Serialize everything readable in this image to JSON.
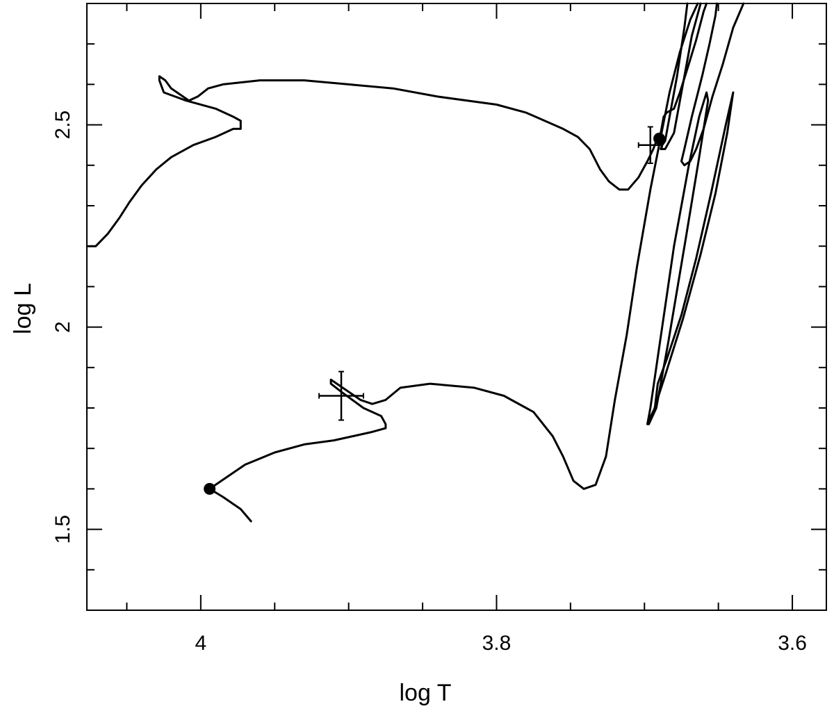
{
  "chart_data": {
    "type": "line",
    "title": "",
    "xlabel": "log T",
    "ylabel": "log L",
    "xlim": [
      4.077,
      3.577
    ],
    "ylim": [
      1.3,
      2.8
    ],
    "x_inverted": true,
    "grid": false,
    "x_ticks_major": [
      4,
      3.8,
      3.6
    ],
    "x_tick_labels": [
      "4",
      "3.8",
      "3.6"
    ],
    "x_ticks_minor": [
      4.05,
      3.95,
      3.9,
      3.85,
      3.75,
      3.7,
      3.65,
      3.55
    ],
    "y_ticks_major": [
      1.5,
      2,
      2.5
    ],
    "y_tick_labels": [
      "1.5",
      "2",
      "2.5"
    ],
    "y_ticks_minor": [
      1.4,
      1.6,
      1.7,
      1.8,
      1.9,
      2.1,
      2.2,
      2.3,
      2.4,
      2.6,
      2.7
    ],
    "series": [
      {
        "points": [
          [
            4.076,
            2.2
          ],
          [
            4.071,
            2.2
          ],
          [
            4.063,
            2.23
          ],
          [
            4.055,
            2.27
          ],
          [
            4.048,
            2.31
          ],
          [
            4.04,
            2.35
          ],
          [
            4.03,
            2.39
          ],
          [
            4.02,
            2.42
          ],
          [
            4.005,
            2.45
          ],
          [
            3.99,
            2.47
          ],
          [
            3.978,
            2.49
          ],
          [
            3.973,
            2.49
          ],
          [
            3.973,
            2.51
          ],
          [
            3.978,
            2.52
          ],
          [
            3.99,
            2.54
          ],
          [
            4.01,
            2.56
          ],
          [
            4.025,
            2.58
          ],
          [
            4.028,
            2.61
          ],
          [
            4.028,
            2.62
          ],
          [
            4.024,
            2.61
          ],
          [
            4.02,
            2.59
          ],
          [
            4.012,
            2.57
          ],
          [
            4.008,
            2.56
          ],
          [
            4.002,
            2.57
          ],
          [
            3.995,
            2.59
          ],
          [
            3.985,
            2.6
          ],
          [
            3.96,
            2.61
          ],
          [
            3.93,
            2.61
          ],
          [
            3.9,
            2.6
          ],
          [
            3.87,
            2.59
          ],
          [
            3.84,
            2.57
          ],
          [
            3.8,
            2.55
          ],
          [
            3.78,
            2.53
          ],
          [
            3.755,
            2.49
          ],
          [
            3.745,
            2.47
          ],
          [
            3.737,
            2.44
          ],
          [
            3.73,
            2.39
          ],
          [
            3.724,
            2.36
          ],
          [
            3.717,
            2.34
          ],
          [
            3.711,
            2.34
          ],
          [
            3.704,
            2.37
          ],
          [
            3.698,
            2.41
          ],
          [
            3.694,
            2.44
          ],
          [
            3.692,
            2.46
          ],
          [
            3.69,
            2.47
          ],
          [
            3.689,
            2.48
          ],
          [
            3.688,
            2.5
          ],
          [
            3.687,
            2.52
          ],
          [
            3.685,
            2.53
          ],
          [
            3.68,
            2.54
          ],
          [
            3.676,
            2.58
          ],
          [
            3.67,
            2.65
          ],
          [
            3.665,
            2.71
          ],
          [
            3.66,
            2.78
          ],
          [
            3.658,
            2.8
          ]
        ]
      },
      {
        "points": [
          [
            3.671,
            2.8
          ],
          [
            3.673,
            2.74
          ],
          [
            3.678,
            2.62
          ],
          [
            3.683,
            2.52
          ],
          [
            3.686,
            2.46
          ],
          [
            3.688,
            2.45
          ],
          [
            3.689,
            2.44
          ],
          [
            3.686,
            2.44
          ],
          [
            3.68,
            2.48
          ],
          [
            3.674,
            2.6
          ],
          [
            3.668,
            2.72
          ],
          [
            3.662,
            2.8
          ]
        ]
      },
      {
        "points": [
          [
            3.633,
            2.8
          ],
          [
            3.64,
            2.74
          ],
          [
            3.647,
            2.65
          ],
          [
            3.654,
            2.57
          ],
          [
            3.66,
            2.49
          ],
          [
            3.665,
            2.44
          ],
          [
            3.669,
            2.41
          ],
          [
            3.673,
            2.4
          ],
          [
            3.675,
            2.41
          ],
          [
            3.673,
            2.44
          ],
          [
            3.668,
            2.52
          ],
          [
            3.661,
            2.62
          ],
          [
            3.656,
            2.7
          ],
          [
            3.652,
            2.77
          ],
          [
            3.651,
            2.8
          ]
        ]
      },
      {
        "points": [
          [
            3.966,
            1.52
          ],
          [
            3.973,
            1.55
          ],
          [
            3.985,
            1.58
          ],
          [
            3.994,
            1.6
          ],
          [
            3.986,
            1.62
          ],
          [
            3.97,
            1.66
          ],
          [
            3.95,
            1.69
          ],
          [
            3.93,
            1.71
          ],
          [
            3.91,
            1.72
          ],
          [
            3.885,
            1.74
          ],
          [
            3.875,
            1.75
          ],
          [
            3.875,
            1.76
          ],
          [
            3.878,
            1.78
          ],
          [
            3.89,
            1.8
          ],
          [
            3.905,
            1.84
          ],
          [
            3.912,
            1.86
          ],
          [
            3.912,
            1.87
          ],
          [
            3.9,
            1.84
          ],
          [
            3.892,
            1.82
          ],
          [
            3.884,
            1.81
          ],
          [
            3.875,
            1.82
          ],
          [
            3.865,
            1.85
          ],
          [
            3.845,
            1.86
          ],
          [
            3.815,
            1.85
          ],
          [
            3.795,
            1.83
          ],
          [
            3.775,
            1.79
          ],
          [
            3.762,
            1.73
          ],
          [
            3.755,
            1.68
          ],
          [
            3.748,
            1.62
          ],
          [
            3.741,
            1.6
          ],
          [
            3.733,
            1.61
          ],
          [
            3.726,
            1.68
          ],
          [
            3.72,
            1.82
          ],
          [
            3.712,
            1.98
          ],
          [
            3.705,
            2.15
          ],
          [
            3.696,
            2.34
          ],
          [
            3.689,
            2.47
          ],
          [
            3.683,
            2.58
          ],
          [
            3.676,
            2.68
          ],
          [
            3.669,
            2.76
          ],
          [
            3.664,
            2.8
          ]
        ]
      },
      {
        "points": [
          [
            3.698,
            1.76
          ],
          [
            3.696,
            1.8
          ],
          [
            3.69,
            1.95
          ],
          [
            3.68,
            2.2
          ],
          [
            3.67,
            2.4
          ],
          [
            3.663,
            2.52
          ],
          [
            3.658,
            2.58
          ],
          [
            3.657,
            2.56
          ],
          [
            3.663,
            2.42
          ],
          [
            3.672,
            2.22
          ],
          [
            3.684,
            1.96
          ],
          [
            3.692,
            1.8
          ],
          [
            3.697,
            1.76
          ]
        ]
      },
      {
        "points": [
          [
            3.64,
            2.58
          ],
          [
            3.645,
            2.5
          ],
          [
            3.655,
            2.33
          ],
          [
            3.665,
            2.17
          ],
          [
            3.675,
            2.03
          ],
          [
            3.685,
            1.92
          ],
          [
            3.691,
            1.86
          ],
          [
            3.693,
            1.8
          ],
          [
            3.697,
            1.77
          ],
          [
            3.694,
            1.79
          ],
          [
            3.686,
            1.88
          ],
          [
            3.674,
            2.02
          ],
          [
            3.662,
            2.18
          ],
          [
            3.652,
            2.33
          ],
          [
            3.644,
            2.48
          ],
          [
            3.64,
            2.58
          ]
        ]
      }
    ],
    "markers": [
      {
        "x": 3.69,
        "y": 2.466
      },
      {
        "x": 3.994,
        "y": 1.6
      }
    ],
    "error_bars": [
      {
        "x": 3.696,
        "y": 2.45,
        "xerr": 0.008,
        "yerr": 0.045
      },
      {
        "x": 3.905,
        "y": 1.83,
        "xerr": 0.015,
        "yerr": 0.06
      }
    ]
  }
}
